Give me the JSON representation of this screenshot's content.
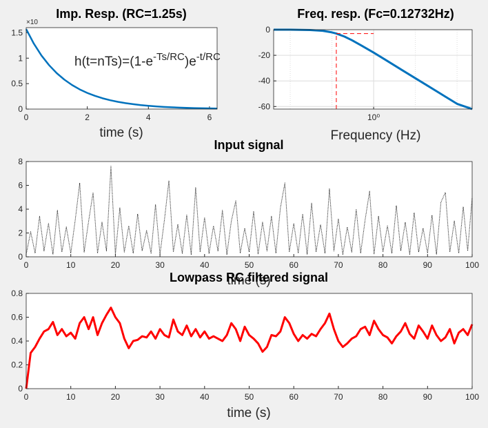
{
  "chart_data": [
    {
      "type": "line",
      "title": "Imp. Resp. (RC=1.25s)",
      "xlabel": "time (s)",
      "exponent_label": "×10",
      "annotation": {
        "parts": [
          "h(t=nTs)=(1-e",
          "-Ts/RC",
          ")e",
          "-t/RC"
        ],
        "superscript": [
          false,
          true,
          false,
          true
        ]
      },
      "x": [
        0,
        0.25,
        0.5,
        0.75,
        1,
        1.25,
        1.5,
        1.75,
        2,
        2.25,
        2.5,
        2.75,
        3,
        3.25,
        3.5,
        3.75,
        4,
        4.25,
        4.5,
        4.75,
        5,
        5.5,
        6,
        6.25
      ],
      "values": [
        1.57,
        1.285,
        1.052,
        0.862,
        0.705,
        0.578,
        0.473,
        0.387,
        0.317,
        0.26,
        0.212,
        0.174,
        0.142,
        0.117,
        0.096,
        0.078,
        0.064,
        0.052,
        0.043,
        0.035,
        0.029,
        0.019,
        0.013,
        0.011
      ],
      "color": "#0072bd",
      "linewidth": 2.5,
      "xlim": [
        0,
        6.25
      ],
      "ylim": [
        0,
        1.6
      ],
      "xticks": [
        0,
        2,
        4,
        6
      ],
      "yticks": [
        0,
        0.5,
        1,
        1.5
      ],
      "grid": false
    },
    {
      "type": "line",
      "title": "Freq. resp. (Fc=0.12732Hz)",
      "xlabel": "Frequency (Hz)",
      "xscale": "log",
      "x": [
        0.004,
        0.01,
        0.03,
        0.06,
        0.1,
        0.12732,
        0.2,
        0.3,
        0.5,
        1,
        2,
        5,
        10,
        20,
        50,
        100,
        200,
        230
      ],
      "values": [
        0,
        -0.03,
        -0.24,
        -0.86,
        -2.1,
        -3,
        -5.4,
        -8.2,
        -12.2,
        -17.9,
        -23.9,
        -31.9,
        -37.9,
        -43.9,
        -51.9,
        -57.9,
        -61.3,
        -62
      ],
      "color": "#0072bd",
      "linewidth": 3,
      "xlim": [
        0.004,
        230
      ],
      "ylim": [
        -62,
        0
      ],
      "xticks": [
        {
          "value": 1,
          "label": "10⁰"
        }
      ],
      "xminorgrid": [
        0.01,
        0.1,
        10,
        100
      ],
      "yticks": [
        0,
        -20,
        -40,
        -60
      ],
      "grid": true,
      "cutoff_lines": {
        "color": "#ff0000",
        "lines": [
          {
            "x": [
              0.12732,
              0.12732
            ],
            "y": [
              -62,
              -3
            ]
          },
          {
            "x": [
              0.12732,
              1
            ],
            "y": [
              -3,
              -3
            ]
          }
        ]
      }
    },
    {
      "type": "line",
      "title": "Input signal",
      "xlabel": "time (s)",
      "linestyle": "dotted",
      "x": [
        0,
        1,
        2,
        3,
        4,
        5,
        6,
        7,
        8,
        9,
        10,
        11,
        12,
        13,
        14,
        15,
        16,
        17,
        18,
        19,
        20,
        21,
        22,
        23,
        24,
        25,
        26,
        27,
        28,
        29,
        30,
        31,
        32,
        33,
        34,
        35,
        36,
        37,
        38,
        39,
        40,
        41,
        42,
        43,
        44,
        45,
        46,
        47,
        48,
        49,
        50,
        51,
        52,
        53,
        54,
        55,
        56,
        57,
        58,
        59,
        60,
        61,
        62,
        63,
        64,
        65,
        66,
        67,
        68,
        69,
        70,
        71,
        72,
        73,
        74,
        75,
        76,
        77,
        78,
        79,
        80,
        81,
        82,
        83,
        84,
        85,
        86,
        87,
        88,
        89,
        90,
        91,
        92,
        93,
        94,
        95,
        96,
        97,
        98,
        99,
        100
      ],
      "values": [
        0.2,
        2.1,
        0.3,
        3.4,
        0.5,
        2.8,
        0.2,
        3.9,
        0.4,
        2.5,
        0.3,
        3.1,
        6.2,
        0.4,
        3.0,
        5.4,
        0.3,
        2.9,
        0.5,
        7.6,
        0.2,
        4.1,
        0.4,
        2.6,
        0.3,
        3.6,
        0.5,
        2.2,
        0.3,
        4.4,
        0.2,
        3.1,
        6.4,
        0.4,
        2.7,
        0.3,
        3.5,
        0.2,
        5.8,
        0.4,
        3.3,
        0.3,
        2.6,
        0.5,
        3.9,
        0.2,
        3.0,
        4.7,
        0.3,
        2.4,
        0.4,
        3.8,
        0.2,
        2.9,
        0.5,
        3.4,
        0.3,
        4.1,
        6.2,
        0.4,
        2.8,
        0.3,
        3.6,
        0.2,
        4.5,
        0.4,
        2.7,
        0.3,
        5.7,
        0.5,
        3.2,
        0.2,
        2.5,
        0.4,
        4.0,
        0.3,
        3.1,
        5.5,
        0.2,
        3.4,
        0.4,
        2.6,
        0.3,
        4.3,
        0.5,
        2.9,
        0.2,
        3.7,
        0.4,
        2.4,
        0.3,
        3.5,
        0.2,
        4.6,
        5.4,
        0.4,
        3.0,
        0.3,
        4.2,
        0.5,
        5.0
      ],
      "color": "#000000",
      "linewidth": 1,
      "xlim": [
        0,
        100
      ],
      "ylim": [
        0,
        8
      ],
      "xticks": [
        0,
        10,
        20,
        30,
        40,
        50,
        60,
        70,
        80,
        90,
        100
      ],
      "yticks": [
        0,
        2,
        4,
        6,
        8
      ],
      "grid": false
    },
    {
      "type": "line",
      "title": "Lowpass RC filtered signal",
      "xlabel": "time (s)",
      "x": [
        0,
        1,
        2,
        3,
        4,
        5,
        6,
        7,
        8,
        9,
        10,
        11,
        12,
        13,
        14,
        15,
        16,
        17,
        18,
        19,
        20,
        21,
        22,
        23,
        24,
        25,
        26,
        27,
        28,
        29,
        30,
        31,
        32,
        33,
        34,
        35,
        36,
        37,
        38,
        39,
        40,
        41,
        42,
        43,
        44,
        45,
        46,
        47,
        48,
        49,
        50,
        51,
        52,
        53,
        54,
        55,
        56,
        57,
        58,
        59,
        60,
        61,
        62,
        63,
        64,
        65,
        66,
        67,
        68,
        69,
        70,
        71,
        72,
        73,
        74,
        75,
        76,
        77,
        78,
        79,
        80,
        81,
        82,
        83,
        84,
        85,
        86,
        87,
        88,
        89,
        90,
        91,
        92,
        93,
        94,
        95,
        96,
        97,
        98,
        99,
        100
      ],
      "values": [
        0,
        0.3,
        0.35,
        0.42,
        0.48,
        0.5,
        0.56,
        0.45,
        0.5,
        0.44,
        0.47,
        0.42,
        0.55,
        0.6,
        0.5,
        0.6,
        0.45,
        0.55,
        0.62,
        0.68,
        0.6,
        0.55,
        0.42,
        0.34,
        0.4,
        0.41,
        0.44,
        0.43,
        0.48,
        0.42,
        0.5,
        0.45,
        0.43,
        0.58,
        0.48,
        0.45,
        0.53,
        0.44,
        0.5,
        0.43,
        0.48,
        0.42,
        0.44,
        0.42,
        0.4,
        0.45,
        0.55,
        0.5,
        0.4,
        0.52,
        0.45,
        0.42,
        0.38,
        0.31,
        0.35,
        0.45,
        0.44,
        0.48,
        0.6,
        0.55,
        0.46,
        0.4,
        0.45,
        0.42,
        0.46,
        0.44,
        0.5,
        0.55,
        0.63,
        0.5,
        0.4,
        0.35,
        0.38,
        0.42,
        0.44,
        0.5,
        0.52,
        0.45,
        0.57,
        0.5,
        0.45,
        0.43,
        0.38,
        0.44,
        0.48,
        0.55,
        0.46,
        0.42,
        0.53,
        0.48,
        0.42,
        0.53,
        0.45,
        0.4,
        0.43,
        0.5,
        0.38,
        0.47,
        0.5,
        0.45,
        0.54
      ],
      "color": "#ff0000",
      "linewidth": 3,
      "xlim": [
        0,
        100
      ],
      "ylim": [
        0,
        0.8
      ],
      "xticks": [
        0,
        10,
        20,
        30,
        40,
        50,
        60,
        70,
        80,
        90,
        100
      ],
      "yticks": [
        0,
        0.2,
        0.4,
        0.6,
        0.8
      ],
      "grid": false
    }
  ]
}
